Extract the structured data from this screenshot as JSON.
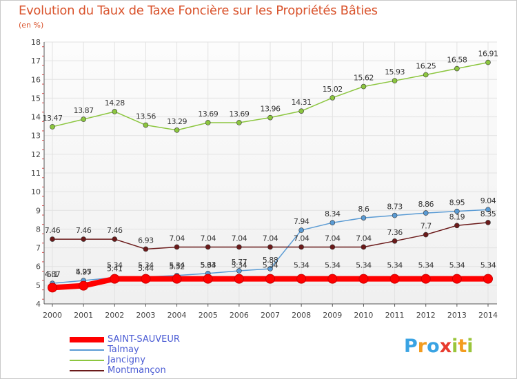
{
  "title": "Evolution du Taux de Taxe Foncière sur les Propriétés Bâties",
  "subtitle": "(en %)",
  "brand": {
    "letters": [
      "P",
      "r",
      "o",
      "x",
      "i",
      "t",
      "i"
    ],
    "colors": [
      "#3aa3e3",
      "#f39c1f",
      "#3aa3e3",
      "#e83b2e",
      "#9ac53a",
      "#f39c1f",
      "#9ac53a"
    ]
  },
  "chart_data": {
    "type": "line",
    "title": "Evolution du Taux de Taxe Foncière sur les Propriétés Bâties",
    "ylabel": "(en %)",
    "x": [
      "2000",
      "2001",
      "2002",
      "2003",
      "2004",
      "2005",
      "2006",
      "2007",
      "2008",
      "2009",
      "2010",
      "2011",
      "2012",
      "2013",
      "2014"
    ],
    "ylim": [
      4,
      18
    ],
    "yticks": [
      "4",
      "5",
      "6",
      "7",
      "8",
      "9",
      "10",
      "11",
      "12",
      "13",
      "14",
      "15",
      "16",
      "17",
      "18"
    ],
    "grid": true,
    "legend": "bottom-left",
    "series": [
      {
        "name": "Jancigny",
        "color": "#8cc63f",
        "values": [
          13.47,
          13.87,
          14.28,
          13.56,
          13.29,
          13.69,
          13.69,
          13.96,
          14.31,
          15.02,
          15.62,
          15.93,
          16.25,
          16.58,
          16.91
        ],
        "labels": [
          "13.47",
          "13.87",
          "14.28",
          "13.56",
          "13.29",
          "13.69",
          "13.69",
          "13.96",
          "14.31",
          "15.02",
          "15.62",
          "15.93",
          "16.25",
          "16.58",
          "16.91"
        ]
      },
      {
        "name": "Talmay",
        "color": "#5a9bd4",
        "values": [
          5.1,
          5.25,
          5.41,
          5.44,
          5.52,
          5.63,
          5.77,
          5.88,
          7.94,
          8.34,
          8.6,
          8.73,
          8.86,
          8.95,
          9.04
        ],
        "labels": [
          "5.1",
          "5.25",
          "5.41",
          "5.44",
          "5.52",
          "5.63",
          "5.77",
          "5.88",
          "7.94",
          "8.34",
          "8.6",
          "8.73",
          "8.86",
          "8.95",
          "9.04"
        ]
      },
      {
        "name": "Montmançon",
        "color": "#6b1a1a",
        "values": [
          7.46,
          7.46,
          7.46,
          6.93,
          7.04,
          7.04,
          7.04,
          7.04,
          7.04,
          7.04,
          7.04,
          7.36,
          7.7,
          8.19,
          8.35
        ],
        "labels": [
          "7.46",
          "7.46",
          "7.46",
          "6.93",
          "7.04",
          "7.04",
          "7.04",
          "7.04",
          "7.04",
          "7.04",
          "7.04",
          "7.36",
          "7.7",
          "8.19",
          "8.35"
        ]
      },
      {
        "name": "SAINT-SAUVEUR",
        "color": "#ff0000",
        "values": [
          4.87,
          4.97,
          5.34,
          5.34,
          5.34,
          5.34,
          5.34,
          5.34,
          5.34,
          5.34,
          5.34,
          5.34,
          5.34,
          5.34,
          5.34
        ],
        "labels": [
          "4.87",
          "4.97",
          "5.34",
          "5.34",
          "5.34",
          "5.34",
          "5.34",
          "5.34",
          "5.34",
          "5.34",
          "5.34",
          "5.34",
          "5.34",
          "5.34",
          "5.34"
        ]
      }
    ]
  },
  "legend_items": [
    {
      "name": "SAINT-SAUVEUR",
      "color": "#ff0000"
    },
    {
      "name": "Talmay",
      "color": "#5a9bd4"
    },
    {
      "name": "Jancigny",
      "color": "#8cc63f"
    },
    {
      "name": "Montmançon",
      "color": "#6b1a1a"
    }
  ]
}
